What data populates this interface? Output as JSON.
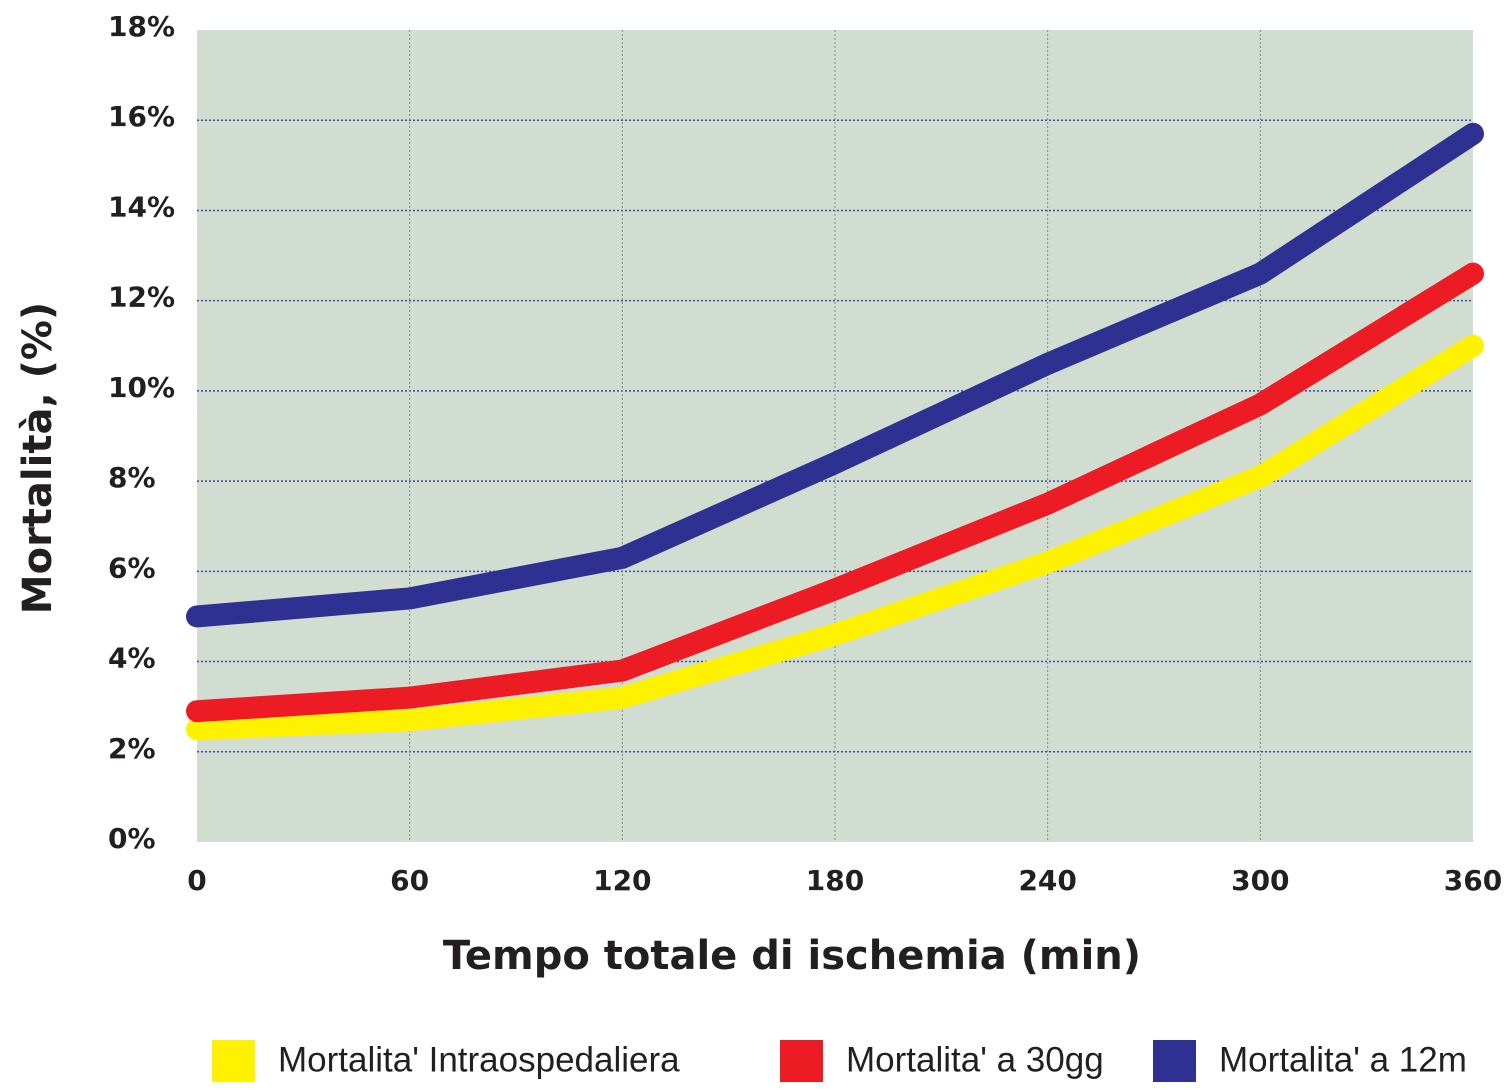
{
  "chart_data": {
    "type": "line",
    "x_label": "Tempo totale di ischemia (min)",
    "y_label": "Mortalità, (%)",
    "x": [
      0,
      60,
      120,
      180,
      240,
      300,
      360
    ],
    "xlim": [
      0,
      360
    ],
    "xticks": [
      0,
      60,
      120,
      180,
      240,
      300,
      360
    ],
    "ylim": [
      0,
      18
    ],
    "yticks": [
      {
        "value": 0,
        "label": "0%"
      },
      {
        "value": 2,
        "label": "2%"
      },
      {
        "value": 4,
        "label": "4%"
      },
      {
        "value": 6,
        "label": "6%"
      },
      {
        "value": 8,
        "label": "8%"
      },
      {
        "value": 10,
        "label": "10%"
      },
      {
        "value": 12,
        "label": "12%"
      },
      {
        "value": 14,
        "label": "14%"
      },
      {
        "value": 16,
        "label": "16%"
      },
      {
        "value": 18,
        "label": "18%"
      }
    ],
    "grid": true,
    "legend": "bottom",
    "series": [
      {
        "name": "Mortalita' Intraospedaliera",
        "color": "#fff200",
        "values": [
          2.5,
          2.7,
          3.2,
          4.6,
          6.2,
          8.1,
          11.0
        ]
      },
      {
        "name": "Mortalita' a 30gg",
        "color": "#ed1c24",
        "values": [
          2.9,
          3.2,
          3.8,
          5.6,
          7.5,
          9.7,
          12.6
        ]
      },
      {
        "name": "Mortalita' a 12m",
        "color": "#2e3192",
        "values": [
          5.0,
          5.4,
          6.3,
          8.4,
          10.6,
          12.6,
          15.7
        ]
      }
    ]
  }
}
